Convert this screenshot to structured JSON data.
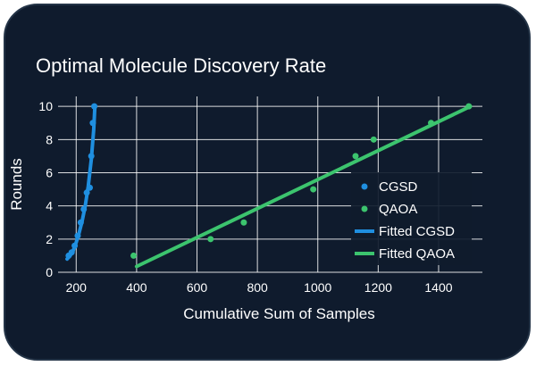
{
  "chart_data": {
    "type": "line",
    "title": "Optimal Molecule Discovery Rate",
    "xlabel": "Cumulative Sum of Samples",
    "ylabel": "Rounds",
    "xlim": [
      140,
      1545
    ],
    "ylim": [
      0,
      10.6
    ],
    "xticks": [
      200,
      400,
      600,
      800,
      1000,
      1200,
      1400
    ],
    "yticks": [
      0,
      2,
      4,
      6,
      8,
      10
    ],
    "grid": true,
    "legend": "right",
    "series": [
      {
        "name": "CGSD",
        "kind": "scatter",
        "color": "#1f8fe0",
        "x": [
          175,
          185,
          195,
          205,
          215,
          225,
          235,
          245,
          250,
          255,
          260
        ],
        "y": [
          1,
          1.2,
          1.6,
          2.2,
          3,
          3.8,
          4.8,
          5.1,
          7,
          9,
          10
        ]
      },
      {
        "name": "QAOA",
        "kind": "scatter",
        "color": "#3cc46e",
        "x": [
          390,
          645,
          755,
          985,
          1125,
          1185,
          1375,
          1500
        ],
        "y": [
          1,
          2,
          3,
          5,
          7,
          8,
          9,
          10
        ]
      },
      {
        "name": "Fitted CGSD",
        "kind": "line",
        "color": "#1f8fe0",
        "x": [
          170,
          180,
          190,
          200,
          210,
          220,
          230,
          240,
          250,
          258,
          262
        ],
        "y": [
          0.8,
          1.0,
          1.3,
          1.8,
          2.4,
          3.1,
          4.0,
          5.2,
          6.8,
          8.6,
          10
        ]
      },
      {
        "name": "Fitted QAOA",
        "kind": "line",
        "color": "#3cc46e",
        "x": [
          400,
          1505
        ],
        "y": [
          0.35,
          10
        ]
      }
    ]
  }
}
